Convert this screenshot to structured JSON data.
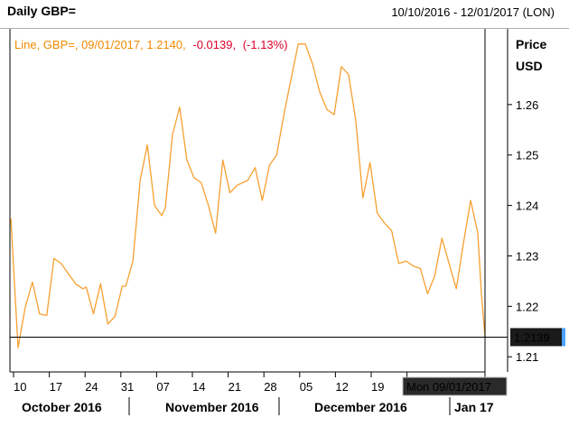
{
  "header": {
    "title": "Daily GBP=",
    "date_range": "10/10/2016 - 12/01/2017 (LON)"
  },
  "legend": {
    "series_label": "Line, GBP=, 09/01/2017, 1.2140,",
    "change": "-0.0139,",
    "change_pct": "(-1.13%)"
  },
  "y_axis_title_line1": "Price",
  "y_axis_title_line2": "USD",
  "last_value_label": "1.2139",
  "crosshair_date_label": "Mon 09/01/2017",
  "colors": {
    "line": "#f7a030",
    "legend_label": "#f08a00",
    "negative": "#e0002a",
    "axis": "#000000",
    "value_box_bg": "#1a1a1a",
    "value_box_marker": "#4aa3ff"
  },
  "chart_data": {
    "type": "line",
    "title": "Daily GBP=",
    "ylabel": "Price USD",
    "ylim": [
      1.207,
      1.275
    ],
    "yticks": [
      "1.21",
      "1.22",
      "1.23",
      "1.24",
      "1.25",
      "1.26"
    ],
    "xticks": [
      "10",
      "17",
      "24",
      "31",
      "07",
      "14",
      "21",
      "28",
      "05",
      "12",
      "19",
      "",
      "Jan 17"
    ],
    "month_labels": [
      "October 2016",
      "November 2016",
      "December 2016",
      "Jan 17"
    ],
    "crosshair": {
      "date": "09/01/2017",
      "value": 1.2139
    },
    "series": [
      {
        "values": [
          [
            0,
            1.2375
          ],
          [
            2,
            1.2118
          ],
          [
            4,
            1.2198
          ],
          [
            6,
            1.2248
          ],
          [
            8,
            1.2185
          ],
          [
            10,
            1.2182
          ],
          [
            12,
            1.2295
          ],
          [
            14,
            1.2285
          ],
          [
            16,
            1.2265
          ],
          [
            18,
            1.2245
          ],
          [
            20,
            1.2235
          ],
          [
            21,
            1.2238
          ],
          [
            23,
            1.2185
          ],
          [
            25,
            1.2245
          ],
          [
            27,
            1.2165
          ],
          [
            29,
            1.218
          ],
          [
            31,
            1.224
          ],
          [
            32,
            1.224
          ],
          [
            34,
            1.229
          ],
          [
            36,
            1.245
          ],
          [
            38,
            1.252
          ],
          [
            40,
            1.24
          ],
          [
            42,
            1.238
          ],
          [
            43,
            1.2395
          ],
          [
            45,
            1.254
          ],
          [
            47,
            1.2595
          ],
          [
            49,
            1.249
          ],
          [
            51,
            1.2455
          ],
          [
            53,
            1.2445
          ],
          [
            55,
            1.24
          ],
          [
            57,
            1.2345
          ],
          [
            59,
            1.249
          ],
          [
            61,
            1.2425
          ],
          [
            63,
            1.244
          ],
          [
            66,
            1.245
          ],
          [
            68,
            1.2475
          ],
          [
            70,
            1.241
          ],
          [
            72,
            1.248
          ],
          [
            74,
            1.25
          ],
          [
            76,
            1.258
          ],
          [
            78,
            1.265
          ],
          [
            80,
            1.272
          ],
          [
            82,
            1.272
          ],
          [
            84,
            1.268
          ],
          [
            86,
            1.2625
          ],
          [
            88,
            1.259
          ],
          [
            90,
            1.258
          ],
          [
            92,
            1.2675
          ],
          [
            94,
            1.266
          ],
          [
            96,
            1.257
          ],
          [
            98,
            1.2415
          ],
          [
            100,
            1.2485
          ],
          [
            102,
            1.2385
          ],
          [
            104,
            1.2365
          ],
          [
            106,
            1.235
          ],
          [
            108,
            1.2285
          ],
          [
            110,
            1.229
          ],
          [
            112,
            1.228
          ],
          [
            114,
            1.2275
          ],
          [
            116,
            1.2225
          ],
          [
            118,
            1.226
          ],
          [
            120,
            1.2335
          ],
          [
            122,
            1.2285
          ],
          [
            124,
            1.2235
          ],
          [
            126,
            1.2325
          ],
          [
            128,
            1.241
          ],
          [
            130,
            1.2345
          ],
          [
            131,
            1.2225
          ],
          [
            132,
            1.214
          ]
        ]
      }
    ]
  }
}
